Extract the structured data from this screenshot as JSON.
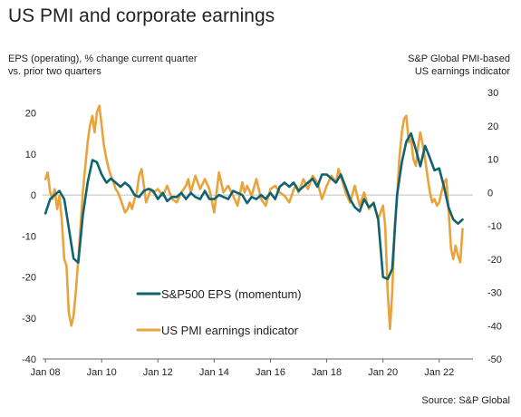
{
  "title": "US PMI and corporate earnings",
  "source": "Source: S&P Global",
  "chart_data": {
    "type": "line",
    "ylabel_left_line1": "EPS (operating), % change current quarter",
    "ylabel_left_line2": "vs. prior two quarters",
    "ylabel_right_line1": "S&P Global PMI-based",
    "ylabel_right_line2": "US earnings indicator",
    "xlim": [
      2007.9,
      2023.2
    ],
    "ylim_left": [
      -40,
      25
    ],
    "ylim_right": [
      -50,
      30
    ],
    "x_ticks": [
      {
        "x": 2008,
        "label": "Jan 08"
      },
      {
        "x": 2010,
        "label": "Jan 10"
      },
      {
        "x": 2012,
        "label": "Jan 12"
      },
      {
        "x": 2014,
        "label": "Jan 14"
      },
      {
        "x": 2016,
        "label": "Jan 16"
      },
      {
        "x": 2018,
        "label": "Jan 18"
      },
      {
        "x": 2020,
        "label": "Jan 20"
      },
      {
        "x": 2022,
        "label": "Jan 22"
      }
    ],
    "y_ticks_left": [
      20,
      10,
      0,
      -10,
      -20,
      -30,
      -40
    ],
    "y_ticks_right": [
      30,
      20,
      10,
      0,
      -10,
      -20,
      -30,
      -40,
      -50
    ],
    "legend_position": "bottom-left",
    "series": [
      {
        "name": "S&P500 EPS (momentum)",
        "axis": "left",
        "color": "#0f6370",
        "points": [
          [
            2008.0,
            -4.5
          ],
          [
            2008.17,
            -1
          ],
          [
            2008.33,
            0
          ],
          [
            2008.5,
            1
          ],
          [
            2008.67,
            -1
          ],
          [
            2008.83,
            -8
          ],
          [
            2009.0,
            -15.5
          ],
          [
            2009.17,
            -16.5
          ],
          [
            2009.33,
            -5
          ],
          [
            2009.5,
            3
          ],
          [
            2009.67,
            8.5
          ],
          [
            2009.83,
            8
          ],
          [
            2010.0,
            5
          ],
          [
            2010.17,
            3
          ],
          [
            2010.33,
            4
          ],
          [
            2010.5,
            3
          ],
          [
            2010.67,
            2
          ],
          [
            2010.83,
            3
          ],
          [
            2011.0,
            2
          ],
          [
            2011.17,
            0
          ],
          [
            2011.33,
            -0.5
          ],
          [
            2011.5,
            1
          ],
          [
            2011.67,
            1.5
          ],
          [
            2011.83,
            1
          ],
          [
            2012.0,
            -1
          ],
          [
            2012.17,
            0.5
          ],
          [
            2012.33,
            -1.5
          ],
          [
            2012.5,
            -0.5
          ],
          [
            2012.67,
            -0.5
          ],
          [
            2012.83,
            0.5
          ],
          [
            2013.0,
            -1
          ],
          [
            2013.17,
            0.5
          ],
          [
            2013.33,
            -0.5
          ],
          [
            2013.5,
            -1
          ],
          [
            2013.67,
            1
          ],
          [
            2013.83,
            -1
          ],
          [
            2014.0,
            -1
          ],
          [
            2014.17,
            0
          ],
          [
            2014.33,
            -0.5
          ],
          [
            2014.5,
            -1
          ],
          [
            2014.67,
            1
          ],
          [
            2014.83,
            0.5
          ],
          [
            2015.0,
            0
          ],
          [
            2015.17,
            -2
          ],
          [
            2015.33,
            -0.5
          ],
          [
            2015.5,
            -1
          ],
          [
            2015.67,
            0
          ],
          [
            2015.83,
            -1
          ],
          [
            2016.0,
            0.5
          ],
          [
            2016.17,
            -1
          ],
          [
            2016.33,
            2
          ],
          [
            2016.5,
            3
          ],
          [
            2016.67,
            2
          ],
          [
            2016.83,
            3
          ],
          [
            2017.0,
            1
          ],
          [
            2017.17,
            2
          ],
          [
            2017.33,
            3
          ],
          [
            2017.5,
            4
          ],
          [
            2017.67,
            2
          ],
          [
            2017.83,
            5
          ],
          [
            2018.0,
            5
          ],
          [
            2018.17,
            4
          ],
          [
            2018.33,
            3
          ],
          [
            2018.5,
            5
          ],
          [
            2018.67,
            2
          ],
          [
            2018.83,
            -1
          ],
          [
            2019.0,
            -3
          ],
          [
            2019.17,
            -4
          ],
          [
            2019.33,
            -1
          ],
          [
            2019.5,
            -3
          ],
          [
            2019.67,
            -2
          ],
          [
            2019.83,
            -6
          ],
          [
            2020.0,
            -20
          ],
          [
            2020.17,
            -20.5
          ],
          [
            2020.33,
            -18
          ],
          [
            2020.5,
            0
          ],
          [
            2020.67,
            8
          ],
          [
            2020.83,
            13
          ],
          [
            2021.0,
            15
          ],
          [
            2021.17,
            11
          ],
          [
            2021.33,
            7
          ],
          [
            2021.5,
            12
          ],
          [
            2021.67,
            9
          ],
          [
            2021.83,
            6
          ],
          [
            2022.0,
            6.5
          ],
          [
            2022.17,
            2
          ],
          [
            2022.33,
            -3
          ],
          [
            2022.5,
            -6
          ],
          [
            2022.67,
            -7
          ],
          [
            2022.83,
            -6
          ]
        ]
      },
      {
        "name": "US PMI earnings indicator",
        "axis": "right",
        "color": "#e9a33c",
        "points": [
          [
            2008.0,
            4
          ],
          [
            2008.08,
            6
          ],
          [
            2008.17,
            0
          ],
          [
            2008.25,
            -2
          ],
          [
            2008.33,
            1
          ],
          [
            2008.42,
            -5
          ],
          [
            2008.5,
            -1
          ],
          [
            2008.58,
            -8
          ],
          [
            2008.67,
            -20
          ],
          [
            2008.75,
            -22
          ],
          [
            2008.83,
            -36
          ],
          [
            2008.92,
            -40
          ],
          [
            2009.0,
            -37
          ],
          [
            2009.08,
            -30
          ],
          [
            2009.17,
            -20
          ],
          [
            2009.25,
            -10
          ],
          [
            2009.33,
            0
          ],
          [
            2009.42,
            8
          ],
          [
            2009.5,
            15
          ],
          [
            2009.58,
            20
          ],
          [
            2009.67,
            23
          ],
          [
            2009.75,
            18
          ],
          [
            2009.83,
            24
          ],
          [
            2009.92,
            26
          ],
          [
            2010.0,
            20
          ],
          [
            2010.08,
            14
          ],
          [
            2010.17,
            10
          ],
          [
            2010.25,
            7
          ],
          [
            2010.33,
            5
          ],
          [
            2010.42,
            3
          ],
          [
            2010.5,
            1
          ],
          [
            2010.58,
            0
          ],
          [
            2010.67,
            -2
          ],
          [
            2010.75,
            -4
          ],
          [
            2010.83,
            -6
          ],
          [
            2010.92,
            -5
          ],
          [
            2011.0,
            -3
          ],
          [
            2011.08,
            -5
          ],
          [
            2011.17,
            -2
          ],
          [
            2011.25,
            0
          ],
          [
            2011.33,
            5
          ],
          [
            2011.42,
            7
          ],
          [
            2011.5,
            2
          ],
          [
            2011.58,
            -3
          ],
          [
            2011.67,
            -1
          ],
          [
            2011.75,
            1
          ],
          [
            2011.83,
            0
          ],
          [
            2012.0,
            1
          ],
          [
            2012.17,
            -1
          ],
          [
            2012.33,
            2
          ],
          [
            2012.5,
            -2
          ],
          [
            2012.67,
            -3
          ],
          [
            2012.83,
            0
          ],
          [
            2013.0,
            2
          ],
          [
            2013.08,
            4
          ],
          [
            2013.17,
            0
          ],
          [
            2013.33,
            5
          ],
          [
            2013.5,
            1
          ],
          [
            2013.67,
            4
          ],
          [
            2013.83,
            1
          ],
          [
            2014.0,
            -6
          ],
          [
            2014.17,
            6
          ],
          [
            2014.33,
            0
          ],
          [
            2014.5,
            2
          ],
          [
            2014.67,
            -1
          ],
          [
            2014.83,
            -4
          ],
          [
            2015.0,
            3
          ],
          [
            2015.08,
            0
          ],
          [
            2015.17,
            2
          ],
          [
            2015.33,
            -1
          ],
          [
            2015.5,
            4
          ],
          [
            2015.67,
            -2
          ],
          [
            2015.83,
            -4
          ],
          [
            2016.0,
            1
          ],
          [
            2016.17,
            2
          ],
          [
            2016.33,
            0
          ],
          [
            2016.5,
            -1
          ],
          [
            2016.67,
            -3
          ],
          [
            2016.83,
            1
          ],
          [
            2016.92,
            2
          ],
          [
            2017.0,
            0
          ],
          [
            2017.17,
            4
          ],
          [
            2017.33,
            1
          ],
          [
            2017.5,
            5
          ],
          [
            2017.67,
            3
          ],
          [
            2017.83,
            -2
          ],
          [
            2018.0,
            2
          ],
          [
            2018.17,
            5
          ],
          [
            2018.33,
            3
          ],
          [
            2018.42,
            7
          ],
          [
            2018.5,
            5
          ],
          [
            2018.67,
            0
          ],
          [
            2018.83,
            -3
          ],
          [
            2019.0,
            2
          ],
          [
            2019.17,
            -4
          ],
          [
            2019.33,
            0
          ],
          [
            2019.5,
            -5
          ],
          [
            2019.67,
            -3
          ],
          [
            2019.83,
            -8
          ],
          [
            2020.0,
            -4
          ],
          [
            2020.08,
            -10
          ],
          [
            2020.17,
            -30
          ],
          [
            2020.25,
            -41
          ],
          [
            2020.33,
            -30
          ],
          [
            2020.42,
            -10
          ],
          [
            2020.5,
            -2
          ],
          [
            2020.58,
            10
          ],
          [
            2020.67,
            18
          ],
          [
            2020.75,
            22
          ],
          [
            2020.83,
            23
          ],
          [
            2020.92,
            15
          ],
          [
            2021.0,
            16
          ],
          [
            2021.08,
            10
          ],
          [
            2021.17,
            8
          ],
          [
            2021.25,
            14
          ],
          [
            2021.33,
            18
          ],
          [
            2021.42,
            14
          ],
          [
            2021.5,
            10
          ],
          [
            2021.58,
            5
          ],
          [
            2021.67,
            0
          ],
          [
            2021.75,
            -3
          ],
          [
            2021.83,
            -2
          ],
          [
            2021.92,
            -4
          ],
          [
            2022.0,
            -3
          ],
          [
            2022.08,
            0
          ],
          [
            2022.17,
            3
          ],
          [
            2022.25,
            4
          ],
          [
            2022.33,
            -5
          ],
          [
            2022.42,
            -17
          ],
          [
            2022.5,
            -20
          ],
          [
            2022.58,
            -16
          ],
          [
            2022.67,
            -19
          ],
          [
            2022.75,
            -21
          ],
          [
            2022.83,
            -11
          ]
        ]
      }
    ]
  }
}
